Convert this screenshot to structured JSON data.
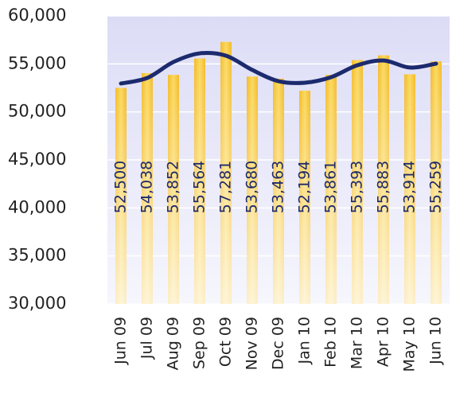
{
  "chart_data": {
    "type": "bar",
    "categories": [
      "Jun 09",
      "Jul 09",
      "Aug 09",
      "Sep 09",
      "Oct 09",
      "Nov 09",
      "Dec 09",
      "Jan 10",
      "Feb 10",
      "Mar 10",
      "Apr 10",
      "May 10",
      "Jun 10"
    ],
    "values": [
      52500,
      54038,
      53852,
      55564,
      57281,
      53680,
      53463,
      52194,
      53861,
      55393,
      55883,
      53914,
      55259
    ],
    "value_labels": [
      "52,500",
      "54,038",
      "53,852",
      "55,564",
      "57,281",
      "53,680",
      "53,463",
      "52,194",
      "53,861",
      "55,393",
      "55,883",
      "53,914",
      "55,259"
    ],
    "color": "#f7c843",
    "trend_values": [
      52960,
      53540,
      55200,
      56100,
      55860,
      54370,
      53200,
      53040,
      53620,
      54860,
      55360,
      54620,
      55030
    ],
    "trend_color": "#1c2a6e",
    "ylim": [
      30000,
      60000
    ],
    "yticks": [
      {
        "value": 30000,
        "label": "30,000"
      },
      {
        "value": 35000,
        "label": "35,000"
      },
      {
        "value": 40000,
        "label": "40,000"
      },
      {
        "value": 45000,
        "label": "45,000"
      },
      {
        "value": 50000,
        "label": "50,000"
      },
      {
        "value": 55000,
        "label": "55,000"
      },
      {
        "value": 60000,
        "label": "60,000"
      }
    ],
    "grid": true
  }
}
